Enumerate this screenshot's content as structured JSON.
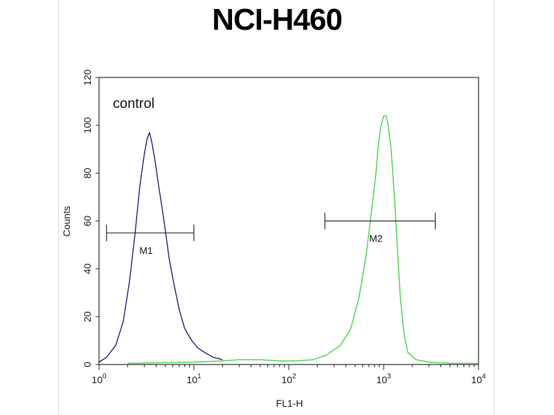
{
  "chart_data": {
    "type": "line",
    "title": "NCI-H460",
    "xlabel": "FL1-H",
    "ylabel": "Counts",
    "x_scale": "log",
    "xlim": [
      1,
      10000
    ],
    "ylim": [
      0,
      120
    ],
    "x_ticks": [
      {
        "value": 1,
        "base": "10",
        "exp": "0"
      },
      {
        "value": 10,
        "base": "10",
        "exp": "1"
      },
      {
        "value": 100,
        "base": "10",
        "exp": "2"
      },
      {
        "value": 1000,
        "base": "10",
        "exp": "3"
      },
      {
        "value": 10000,
        "base": "10",
        "exp": "4"
      }
    ],
    "y_ticks": [
      "0",
      "20",
      "40",
      "60",
      "80",
      "100",
      "120"
    ],
    "annotation": "control",
    "series": [
      {
        "color": "#1a1a6e",
        "points": [
          [
            1,
            1
          ],
          [
            1.2,
            3
          ],
          [
            1.5,
            8
          ],
          [
            1.8,
            18
          ],
          [
            2.1,
            35
          ],
          [
            2.4,
            55
          ],
          [
            2.7,
            75
          ],
          [
            3.0,
            88
          ],
          [
            3.2,
            94
          ],
          [
            3.4,
            97
          ],
          [
            3.6,
            93
          ],
          [
            3.9,
            85
          ],
          [
            4.2,
            76
          ],
          [
            4.6,
            66
          ],
          [
            5.0,
            56
          ],
          [
            5.5,
            44
          ],
          [
            6.2,
            33
          ],
          [
            7.0,
            23
          ],
          [
            8.0,
            15
          ],
          [
            9.5,
            10
          ],
          [
            11,
            7
          ],
          [
            13,
            5
          ],
          [
            16,
            3
          ],
          [
            20,
            2
          ]
        ]
      },
      {
        "color": "#3fd23f",
        "points": [
          [
            2,
            0.5
          ],
          [
            10,
            1
          ],
          [
            20,
            1.5
          ],
          [
            30,
            2
          ],
          [
            50,
            2
          ],
          [
            80,
            1.5
          ],
          [
            120,
            1.5
          ],
          [
            180,
            2
          ],
          [
            250,
            4
          ],
          [
            350,
            8
          ],
          [
            450,
            15
          ],
          [
            550,
            28
          ],
          [
            650,
            45
          ],
          [
            750,
            65
          ],
          [
            830,
            80
          ],
          [
            880,
            92
          ],
          [
            940,
            100
          ],
          [
            1000,
            104
          ],
          [
            1060,
            104
          ],
          [
            1120,
            100
          ],
          [
            1200,
            90
          ],
          [
            1300,
            70
          ],
          [
            1400,
            48
          ],
          [
            1500,
            28
          ],
          [
            1650,
            12
          ],
          [
            1800,
            5
          ],
          [
            2200,
            2
          ],
          [
            3000,
            1
          ],
          [
            5000,
            0.5
          ],
          [
            10000,
            0.5
          ]
        ]
      }
    ],
    "markers": [
      {
        "label": "M1",
        "x_start": 1.2,
        "x_end": 10,
        "y": 55
      },
      {
        "label": "M2",
        "x_start": 240,
        "x_end": 3500,
        "y": 60
      }
    ]
  }
}
